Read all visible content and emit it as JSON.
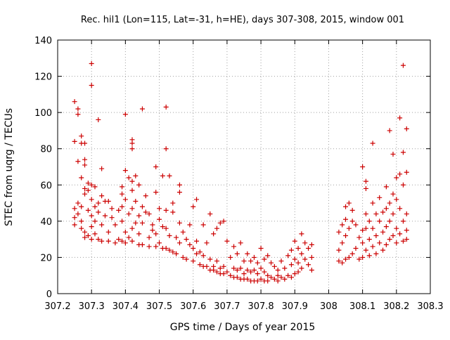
{
  "chart_data": {
    "type": "scatter",
    "title": "Rec. hil1 (Lon=115, Lat=-31, h=HE), days 307-308, 2015, window 001",
    "xlabel": "GPS time / Days of year 2015",
    "ylabel": "STEC from uqrg / TECUs",
    "xlim": [
      307.2,
      308.3
    ],
    "ylim": [
      0,
      140
    ],
    "x_ticks": [
      "307.2",
      "307.3",
      "307.4",
      "307.5",
      "307.6",
      "307.7",
      "307.8",
      "307.9",
      "308",
      "308.1",
      "308.2",
      "308.3"
    ],
    "y_ticks": [
      "0",
      "20",
      "40",
      "60",
      "80",
      "100",
      "120",
      "140"
    ],
    "grid": true,
    "marker": "+",
    "color": "#cc0000",
    "series": [
      {
        "points": [
          [
            307.25,
            106
          ],
          [
            307.25,
            84
          ],
          [
            307.25,
            47
          ],
          [
            307.25,
            42
          ],
          [
            307.25,
            38
          ],
          [
            307.26,
            102
          ],
          [
            307.26,
            99
          ],
          [
            307.26,
            73
          ],
          [
            307.26,
            50
          ],
          [
            307.26,
            44
          ],
          [
            307.27,
            87
          ],
          [
            307.27,
            83
          ],
          [
            307.27,
            64
          ],
          [
            307.27,
            48
          ],
          [
            307.27,
            40
          ],
          [
            307.27,
            36
          ],
          [
            307.28,
            83
          ],
          [
            307.28,
            74
          ],
          [
            307.28,
            71
          ],
          [
            307.28,
            58
          ],
          [
            307.28,
            55
          ],
          [
            307.28,
            34
          ],
          [
            307.28,
            31
          ],
          [
            307.29,
            61
          ],
          [
            307.29,
            57
          ],
          [
            307.29,
            46
          ],
          [
            307.29,
            32
          ],
          [
            307.3,
            127
          ],
          [
            307.3,
            115
          ],
          [
            307.3,
            60
          ],
          [
            307.3,
            52
          ],
          [
            307.3,
            43
          ],
          [
            307.3,
            37
          ],
          [
            307.3,
            30
          ],
          [
            307.31,
            59
          ],
          [
            307.31,
            48
          ],
          [
            307.31,
            40
          ],
          [
            307.31,
            33
          ],
          [
            307.32,
            96
          ],
          [
            307.32,
            50
          ],
          [
            307.32,
            45
          ],
          [
            307.32,
            30
          ],
          [
            307.33,
            69
          ],
          [
            307.33,
            54
          ],
          [
            307.33,
            38
          ],
          [
            307.33,
            29
          ],
          [
            307.34,
            51
          ],
          [
            307.34,
            43
          ],
          [
            307.35,
            51
          ],
          [
            307.35,
            34
          ],
          [
            307.35,
            29
          ],
          [
            307.36,
            47
          ],
          [
            307.36,
            42
          ],
          [
            307.37,
            38
          ],
          [
            307.37,
            28
          ],
          [
            307.38,
            46
          ],
          [
            307.38,
            30
          ],
          [
            307.39,
            59
          ],
          [
            307.39,
            55
          ],
          [
            307.39,
            48
          ],
          [
            307.39,
            40
          ],
          [
            307.39,
            29
          ],
          [
            307.4,
            99
          ],
          [
            307.4,
            68
          ],
          [
            307.4,
            52
          ],
          [
            307.4,
            34
          ],
          [
            307.4,
            28
          ],
          [
            307.41,
            64
          ],
          [
            307.41,
            44
          ],
          [
            307.41,
            31
          ],
          [
            307.42,
            85
          ],
          [
            307.42,
            83
          ],
          [
            307.42,
            80
          ],
          [
            307.42,
            62
          ],
          [
            307.42,
            57
          ],
          [
            307.42,
            47
          ],
          [
            307.42,
            36
          ],
          [
            307.42,
            29
          ],
          [
            307.43,
            65
          ],
          [
            307.43,
            51
          ],
          [
            307.43,
            39
          ],
          [
            307.44,
            60
          ],
          [
            307.44,
            43
          ],
          [
            307.44,
            33
          ],
          [
            307.44,
            27
          ],
          [
            307.45,
            102
          ],
          [
            307.45,
            48
          ],
          [
            307.45,
            39
          ],
          [
            307.45,
            27
          ],
          [
            307.46,
            54
          ],
          [
            307.46,
            45
          ],
          [
            307.47,
            44
          ],
          [
            307.47,
            31
          ],
          [
            307.47,
            26
          ],
          [
            307.48,
            38
          ],
          [
            307.48,
            35
          ],
          [
            307.49,
            70
          ],
          [
            307.49,
            56
          ],
          [
            307.49,
            33
          ],
          [
            307.49,
            26
          ],
          [
            307.5,
            47
          ],
          [
            307.5,
            41
          ],
          [
            307.5,
            28
          ],
          [
            307.51,
            65
          ],
          [
            307.51,
            37
          ],
          [
            307.51,
            25
          ],
          [
            307.52,
            103
          ],
          [
            307.52,
            80
          ],
          [
            307.52,
            46
          ],
          [
            307.52,
            36
          ],
          [
            307.52,
            25
          ],
          [
            307.53,
            65
          ],
          [
            307.53,
            32
          ],
          [
            307.53,
            24
          ],
          [
            307.54,
            50
          ],
          [
            307.54,
            45
          ],
          [
            307.54,
            23
          ],
          [
            307.55,
            31
          ],
          [
            307.55,
            22
          ],
          [
            307.56,
            60
          ],
          [
            307.56,
            56
          ],
          [
            307.56,
            39
          ],
          [
            307.56,
            28
          ],
          [
            307.57,
            34
          ],
          [
            307.57,
            20
          ],
          [
            307.58,
            30
          ],
          [
            307.58,
            19
          ],
          [
            307.59,
            38
          ],
          [
            307.59,
            27
          ],
          [
            307.6,
            48
          ],
          [
            307.6,
            25
          ],
          [
            307.6,
            18
          ],
          [
            307.61,
            52
          ],
          [
            307.61,
            29
          ],
          [
            307.61,
            22
          ],
          [
            307.62,
            23
          ],
          [
            307.62,
            16
          ],
          [
            307.63,
            38
          ],
          [
            307.63,
            21
          ],
          [
            307.63,
            15
          ],
          [
            307.64,
            28
          ],
          [
            307.64,
            15
          ],
          [
            307.65,
            44
          ],
          [
            307.65,
            19
          ],
          [
            307.65,
            13
          ],
          [
            307.66,
            33
          ],
          [
            307.66,
            15
          ],
          [
            307.66,
            13
          ],
          [
            307.67,
            36
          ],
          [
            307.67,
            18
          ],
          [
            307.67,
            12
          ],
          [
            307.68,
            39
          ],
          [
            307.68,
            14
          ],
          [
            307.68,
            11
          ],
          [
            307.69,
            40
          ],
          [
            307.69,
            15
          ],
          [
            307.69,
            11
          ],
          [
            307.7,
            29
          ],
          [
            307.7,
            12
          ],
          [
            307.71,
            20
          ],
          [
            307.71,
            10
          ],
          [
            307.72,
            26
          ],
          [
            307.72,
            14
          ],
          [
            307.72,
            9
          ],
          [
            307.73,
            22
          ],
          [
            307.73,
            13
          ],
          [
            307.73,
            9
          ],
          [
            307.74,
            28
          ],
          [
            307.74,
            14
          ],
          [
            307.74,
            8
          ],
          [
            307.75,
            18
          ],
          [
            307.75,
            11
          ],
          [
            307.75,
            8
          ],
          [
            307.76,
            22
          ],
          [
            307.76,
            13
          ],
          [
            307.76,
            8
          ],
          [
            307.77,
            18
          ],
          [
            307.77,
            12
          ],
          [
            307.77,
            7
          ],
          [
            307.78,
            20
          ],
          [
            307.78,
            13
          ],
          [
            307.78,
            7
          ],
          [
            307.79,
            17
          ],
          [
            307.79,
            11
          ],
          [
            307.79,
            7
          ],
          [
            307.8,
            25
          ],
          [
            307.8,
            14
          ],
          [
            307.8,
            8
          ],
          [
            307.81,
            19
          ],
          [
            307.81,
            12
          ],
          [
            307.81,
            7
          ],
          [
            307.82,
            21
          ],
          [
            307.82,
            10
          ],
          [
            307.82,
            7
          ],
          [
            307.83,
            17
          ],
          [
            307.83,
            9
          ],
          [
            307.84,
            15
          ],
          [
            307.84,
            8
          ],
          [
            307.85,
            13
          ],
          [
            307.85,
            10
          ],
          [
            307.85,
            7
          ],
          [
            307.86,
            18
          ],
          [
            307.86,
            9
          ],
          [
            307.87,
            14
          ],
          [
            307.87,
            8
          ],
          [
            307.88,
            21
          ],
          [
            307.88,
            10
          ],
          [
            307.89,
            24
          ],
          [
            307.89,
            16
          ],
          [
            307.89,
            9
          ],
          [
            307.9,
            29
          ],
          [
            307.9,
            19
          ],
          [
            307.9,
            11
          ],
          [
            307.91,
            25
          ],
          [
            307.91,
            17
          ],
          [
            307.91,
            12
          ],
          [
            307.92,
            33
          ],
          [
            307.92,
            22
          ],
          [
            307.92,
            14
          ],
          [
            307.93,
            28
          ],
          [
            307.93,
            19
          ],
          [
            307.94,
            25
          ],
          [
            307.94,
            16
          ],
          [
            307.95,
            27
          ],
          [
            307.95,
            20
          ],
          [
            307.95,
            13
          ],
          [
            308.03,
            34
          ],
          [
            308.03,
            24
          ],
          [
            308.03,
            18
          ],
          [
            308.04,
            38
          ],
          [
            308.04,
            28
          ],
          [
            308.04,
            17
          ],
          [
            308.05,
            48
          ],
          [
            308.05,
            41
          ],
          [
            308.05,
            32
          ],
          [
            308.05,
            19
          ],
          [
            308.06,
            50
          ],
          [
            308.06,
            36
          ],
          [
            308.06,
            20
          ],
          [
            308.07,
            46
          ],
          [
            308.07,
            40
          ],
          [
            308.07,
            22
          ],
          [
            308.08,
            38
          ],
          [
            308.08,
            25
          ],
          [
            308.09,
            31
          ],
          [
            308.09,
            19
          ],
          [
            308.1,
            70
          ],
          [
            308.1,
            35
          ],
          [
            308.1,
            28
          ],
          [
            308.1,
            20
          ],
          [
            308.11,
            62
          ],
          [
            308.11,
            58
          ],
          [
            308.11,
            44
          ],
          [
            308.11,
            36
          ],
          [
            308.11,
            24
          ],
          [
            308.12,
            40
          ],
          [
            308.12,
            30
          ],
          [
            308.12,
            21
          ],
          [
            308.13,
            83
          ],
          [
            308.13,
            50
          ],
          [
            308.13,
            36
          ],
          [
            308.13,
            26
          ],
          [
            308.14,
            44
          ],
          [
            308.14,
            32
          ],
          [
            308.14,
            22
          ],
          [
            308.15,
            53
          ],
          [
            308.15,
            40
          ],
          [
            308.15,
            28
          ],
          [
            308.16,
            45
          ],
          [
            308.16,
            34
          ],
          [
            308.16,
            24
          ],
          [
            308.17,
            59
          ],
          [
            308.17,
            47
          ],
          [
            308.17,
            37
          ],
          [
            308.17,
            27
          ],
          [
            308.18,
            90
          ],
          [
            308.18,
            50
          ],
          [
            308.18,
            40
          ],
          [
            308.18,
            30
          ],
          [
            308.19,
            77
          ],
          [
            308.19,
            55
          ],
          [
            308.19,
            44
          ],
          [
            308.19,
            32
          ],
          [
            308.2,
            64
          ],
          [
            308.2,
            52
          ],
          [
            308.2,
            36
          ],
          [
            308.2,
            28
          ],
          [
            308.21,
            97
          ],
          [
            308.21,
            66
          ],
          [
            308.21,
            47
          ],
          [
            308.21,
            33
          ],
          [
            308.22,
            126
          ],
          [
            308.22,
            78
          ],
          [
            308.22,
            60
          ],
          [
            308.22,
            40
          ],
          [
            308.22,
            29
          ],
          [
            308.23,
            91
          ],
          [
            308.23,
            67
          ],
          [
            308.23,
            44
          ],
          [
            308.23,
            35
          ],
          [
            308.23,
            30
          ]
        ]
      }
    ]
  }
}
